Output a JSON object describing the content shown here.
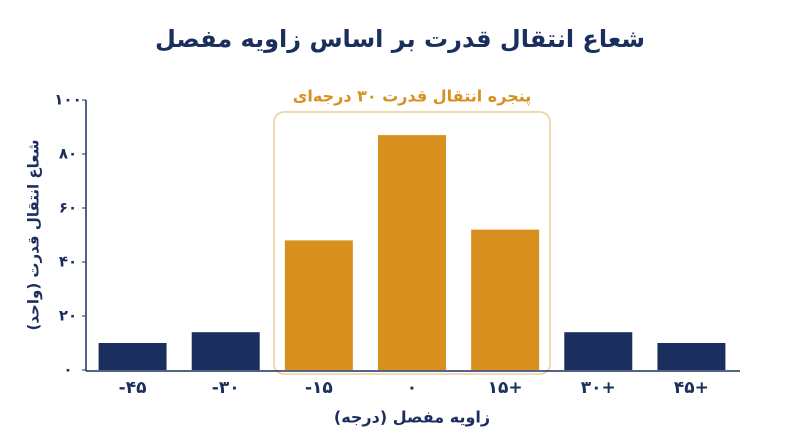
{
  "chart_data": {
    "type": "bar",
    "title": "شعاع انتقال قدرت بر اساس زاویه مفصل",
    "x_label": "زاویه مفصل (درجه)",
    "y_label": "شعاع انتقال قدرت (واحد)",
    "annotation": "پنجره انتقال قدرت ۳۰ درجه‌ای",
    "categories": [
      "-۴۵",
      "-۳۰",
      "-۱۵",
      "۰",
      "۱۵+",
      "۳۰+",
      "۴۵+"
    ],
    "values": [
      10,
      14,
      48,
      87,
      52,
      14,
      10
    ],
    "colors": [
      "#1b2f5e",
      "#1b2f5e",
      "#d8901f",
      "#d8901f",
      "#d8901f",
      "#1b2f5e",
      "#1b2f5e"
    ],
    "ylim": [
      0,
      100
    ],
    "yticks": [
      {
        "value": 0,
        "label": "۰"
      },
      {
        "value": 20,
        "label": "۲۰"
      },
      {
        "value": 40,
        "label": "۴۰"
      },
      {
        "value": 60,
        "label": "۶۰"
      },
      {
        "value": 80,
        "label": "۸۰"
      },
      {
        "value": 100,
        "label": "۱۰۰"
      }
    ],
    "grid": false
  }
}
